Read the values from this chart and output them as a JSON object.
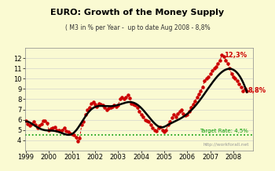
{
  "title": "EURO: Growth of the Money Supply",
  "subtitle": "( M3 in % per Year -  up to date Aug 2008 - 8,8%",
  "target_rate": 4.5,
  "target_label": "Target Rate: 4,5%",
  "watermark": "http://workforall.net",
  "annotation_peak": "12,3%",
  "annotation_end": "8,8%",
  "ylim": [
    3,
    13
  ],
  "yticks": [
    4,
    5,
    6,
    7,
    8,
    9,
    10,
    11,
    12
  ],
  "background_color": "#FAFAD2",
  "plot_bg_color": "#FAFAD2",
  "line_color": "#000000",
  "dot_color": "#CC0000",
  "target_color": "#009900",
  "title_color": "#000000",
  "subtitle_color": "#333333",
  "annotation_color": "#CC0000",
  "xlim": [
    1998.95,
    2008.85
  ],
  "xtick_years": [
    1999,
    2000,
    2001,
    2002,
    2003,
    2004,
    2005,
    2006,
    2007,
    2008
  ],
  "data_x": [
    1999.0,
    1999.083,
    1999.167,
    1999.25,
    1999.333,
    1999.417,
    1999.5,
    1999.583,
    1999.667,
    1999.75,
    1999.833,
    1999.917,
    2000.0,
    2000.083,
    2000.167,
    2000.25,
    2000.333,
    2000.417,
    2000.5,
    2000.583,
    2000.667,
    2000.75,
    2000.833,
    2000.917,
    2001.0,
    2001.083,
    2001.167,
    2001.25,
    2001.333,
    2001.417,
    2001.5,
    2001.583,
    2001.667,
    2001.75,
    2001.833,
    2001.917,
    2002.0,
    2002.083,
    2002.167,
    2002.25,
    2002.333,
    2002.417,
    2002.5,
    2002.583,
    2002.667,
    2002.75,
    2002.833,
    2002.917,
    2003.0,
    2003.083,
    2003.167,
    2003.25,
    2003.333,
    2003.417,
    2003.5,
    2003.583,
    2003.667,
    2003.75,
    2003.833,
    2003.917,
    2004.0,
    2004.083,
    2004.167,
    2004.25,
    2004.333,
    2004.417,
    2004.5,
    2004.583,
    2004.667,
    2004.75,
    2004.833,
    2004.917,
    2005.0,
    2005.083,
    2005.167,
    2005.25,
    2005.333,
    2005.417,
    2005.5,
    2005.583,
    2005.667,
    2005.75,
    2005.833,
    2005.917,
    2006.0,
    2006.083,
    2006.167,
    2006.25,
    2006.333,
    2006.417,
    2006.5,
    2006.583,
    2006.667,
    2006.75,
    2006.833,
    2006.917,
    2007.0,
    2007.083,
    2007.167,
    2007.25,
    2007.333,
    2007.417,
    2007.5,
    2007.583,
    2007.667,
    2007.75,
    2007.833,
    2007.917,
    2008.0,
    2008.083,
    2008.167,
    2008.25,
    2008.333,
    2008.417,
    2008.5,
    2008.583
  ],
  "data_y": [
    5.9,
    5.6,
    5.4,
    5.6,
    5.8,
    5.5,
    5.2,
    5.4,
    5.6,
    5.9,
    5.9,
    5.7,
    5.0,
    5.1,
    5.2,
    5.3,
    5.0,
    5.0,
    4.9,
    5.0,
    5.2,
    4.9,
    4.8,
    4.7,
    4.6,
    4.5,
    4.3,
    3.9,
    4.2,
    5.5,
    5.8,
    6.5,
    7.0,
    7.2,
    7.6,
    7.7,
    7.5,
    7.3,
    7.6,
    7.5,
    7.4,
    7.2,
    7.0,
    7.1,
    7.2,
    7.3,
    7.4,
    7.3,
    7.4,
    8.0,
    8.2,
    8.0,
    8.2,
    8.4,
    8.1,
    7.6,
    7.5,
    7.4,
    7.2,
    6.8,
    6.5,
    6.3,
    6.0,
    5.9,
    5.8,
    5.5,
    5.2,
    5.0,
    4.9,
    5.2,
    5.3,
    5.0,
    4.8,
    5.0,
    5.5,
    5.8,
    6.2,
    6.5,
    6.3,
    6.6,
    6.8,
    7.0,
    6.6,
    6.4,
    6.5,
    6.8,
    7.2,
    7.5,
    7.8,
    8.2,
    8.5,
    8.8,
    9.2,
    9.8,
    10.0,
    10.2,
    10.5,
    10.8,
    11.0,
    11.2,
    11.5,
    11.8,
    12.3,
    12.2,
    11.8,
    11.5,
    11.0,
    10.5,
    10.2,
    10.0,
    9.8,
    9.5,
    9.2,
    8.8,
    9.0,
    8.8
  ],
  "smooth_x": [
    1999.0,
    1999.2,
    1999.4,
    1999.6,
    1999.8,
    2000.0,
    2000.2,
    2000.5,
    2000.8,
    2001.0,
    2001.3,
    2001.6,
    2001.9,
    2002.1,
    2002.4,
    2002.7,
    2003.0,
    2003.3,
    2003.6,
    2003.9,
    2004.2,
    2004.5,
    2004.8,
    2005.0,
    2005.3,
    2005.6,
    2006.0,
    2006.3,
    2006.6,
    2006.9,
    2007.0,
    2007.2,
    2007.4,
    2007.6,
    2007.8,
    2008.0,
    2008.2,
    2008.4,
    2008.583
  ],
  "smooth_y": [
    5.85,
    5.65,
    5.4,
    5.2,
    5.0,
    4.9,
    4.85,
    4.8,
    4.65,
    4.55,
    5.2,
    6.5,
    7.1,
    7.35,
    7.3,
    7.3,
    7.45,
    7.7,
    7.65,
    7.3,
    6.7,
    6.0,
    5.3,
    4.9,
    5.7,
    6.3,
    6.6,
    7.2,
    8.0,
    8.8,
    9.3,
    10.0,
    10.6,
    10.9,
    11.0,
    10.85,
    10.4,
    9.6,
    8.8
  ]
}
